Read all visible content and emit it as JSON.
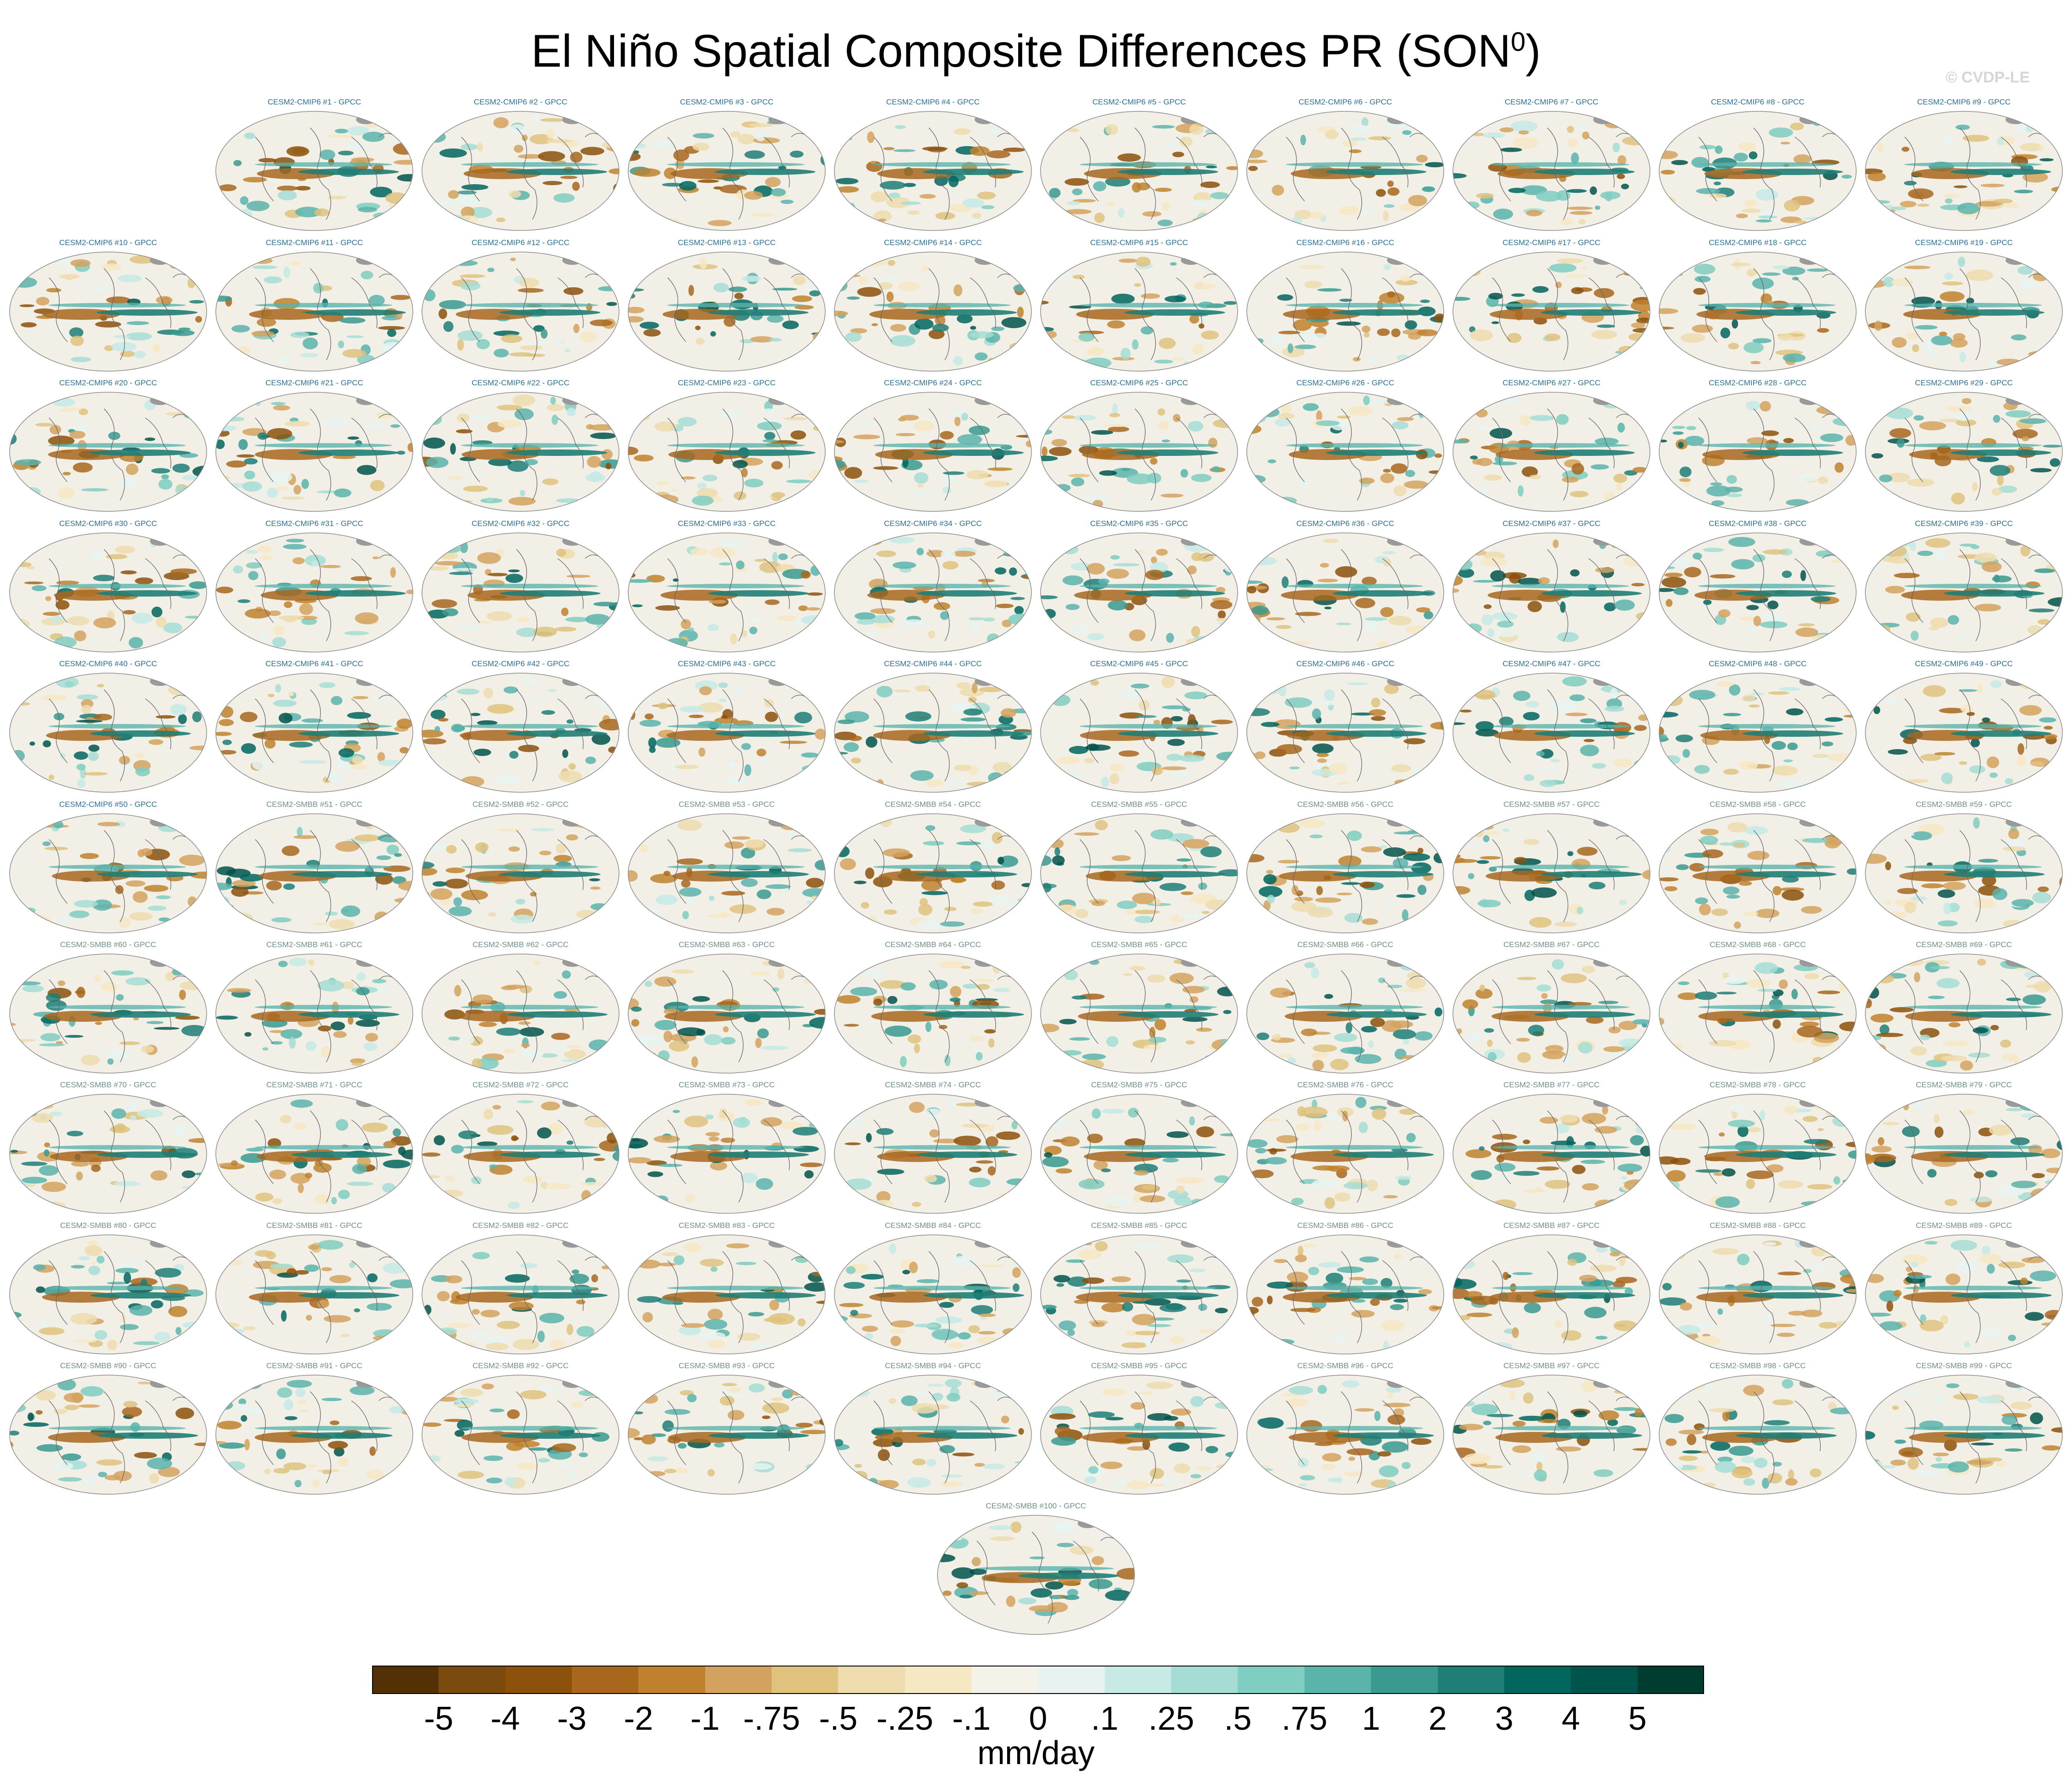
{
  "chart_data": {
    "type": "heatmap",
    "title": "El Niño Spatial Composite Differences PR (SON",
    "title_superscript": "0",
    "title_suffix": ")",
    "watermark": "© CVDP-LE",
    "colorbar": {
      "ticks": [
        "-5",
        "-4",
        "-3",
        "-2",
        "-1",
        "-.75",
        "-.5",
        "-.25",
        "-.1",
        "0",
        ".1",
        ".25",
        ".5",
        ".75",
        "1",
        "2",
        "3",
        "4",
        "5"
      ],
      "units": "mm/day",
      "colors": [
        "#543005",
        "#7a4a0e",
        "#8c510a",
        "#a8671d",
        "#bf812d",
        "#d3a25e",
        "#dfc27d",
        "#eedcae",
        "#f6e8c3",
        "#f5f2ea",
        "#e8f3f1",
        "#c7eae5",
        "#a5ddd4",
        "#80cdc1",
        "#5ab4ac",
        "#3a9a90",
        "#1f7e76",
        "#01665e",
        "#01544b",
        "#003c30"
      ]
    },
    "panels": [
      "CESM2-CMIP6 #1 - GPCC",
      "CESM2-CMIP6 #2 - GPCC",
      "CESM2-CMIP6 #3 - GPCC",
      "CESM2-CMIP6 #4 - GPCC",
      "CESM2-CMIP6 #5 - GPCC",
      "CESM2-CMIP6 #6 - GPCC",
      "CESM2-CMIP6 #7 - GPCC",
      "CESM2-CMIP6 #8 - GPCC",
      "CESM2-CMIP6 #9 - GPCC",
      "CESM2-CMIP6 #10 - GPCC",
      "CESM2-CMIP6 #11 - GPCC",
      "CESM2-CMIP6 #12 - GPCC",
      "CESM2-CMIP6 #13 - GPCC",
      "CESM2-CMIP6 #14 - GPCC",
      "CESM2-CMIP6 #15 - GPCC",
      "CESM2-CMIP6 #16 - GPCC",
      "CESM2-CMIP6 #17 - GPCC",
      "CESM2-CMIP6 #18 - GPCC",
      "CESM2-CMIP6 #19 - GPCC",
      "CESM2-CMIP6 #20 - GPCC",
      "CESM2-CMIP6 #21 - GPCC",
      "CESM2-CMIP6 #22 - GPCC",
      "CESM2-CMIP6 #23 - GPCC",
      "CESM2-CMIP6 #24 - GPCC",
      "CESM2-CMIP6 #25 - GPCC",
      "CESM2-CMIP6 #26 - GPCC",
      "CESM2-CMIP6 #27 - GPCC",
      "CESM2-CMIP6 #28 - GPCC",
      "CESM2-CMIP6 #29 - GPCC",
      "CESM2-CMIP6 #30 - GPCC",
      "CESM2-CMIP6 #31 - GPCC",
      "CESM2-CMIP6 #32 - GPCC",
      "CESM2-CMIP6 #33 - GPCC",
      "CESM2-CMIP6 #34 - GPCC",
      "CESM2-CMIP6 #35 - GPCC",
      "CESM2-CMIP6 #36 - GPCC",
      "CESM2-CMIP6 #37 - GPCC",
      "CESM2-CMIP6 #38 - GPCC",
      "CESM2-CMIP6 #39 - GPCC",
      "CESM2-CMIP6 #40 - GPCC",
      "CESM2-CMIP6 #41 - GPCC",
      "CESM2-CMIP6 #42 - GPCC",
      "CESM2-CMIP6 #43 - GPCC",
      "CESM2-CMIP6 #44 - GPCC",
      "CESM2-CMIP6 #45 - GPCC",
      "CESM2-CMIP6 #46 - GPCC",
      "CESM2-CMIP6 #47 - GPCC",
      "CESM2-CMIP6 #48 - GPCC",
      "CESM2-CMIP6 #49 - GPCC",
      "CESM2-CMIP6 #50 - GPCC",
      "CESM2-SMBB #51 - GPCC",
      "CESM2-SMBB #52 - GPCC",
      "CESM2-SMBB #53 - GPCC",
      "CESM2-SMBB #54 - GPCC",
      "CESM2-SMBB #55 - GPCC",
      "CESM2-SMBB #56 - GPCC",
      "CESM2-SMBB #57 - GPCC",
      "CESM2-SMBB #58 - GPCC",
      "CESM2-SMBB #59 - GPCC",
      "CESM2-SMBB #60 - GPCC",
      "CESM2-SMBB #61 - GPCC",
      "CESM2-SMBB #62 - GPCC",
      "CESM2-SMBB #63 - GPCC",
      "CESM2-SMBB #64 - GPCC",
      "CESM2-SMBB #65 - GPCC",
      "CESM2-SMBB #66 - GPCC",
      "CESM2-SMBB #67 - GPCC",
      "CESM2-SMBB #68 - GPCC",
      "CESM2-SMBB #69 - GPCC",
      "CESM2-SMBB #70 - GPCC",
      "CESM2-SMBB #71 - GPCC",
      "CESM2-SMBB #72 - GPCC",
      "CESM2-SMBB #73 - GPCC",
      "CESM2-SMBB #74 - GPCC",
      "CESM2-SMBB #75 - GPCC",
      "CESM2-SMBB #76 - GPCC",
      "CESM2-SMBB #77 - GPCC",
      "CESM2-SMBB #78 - GPCC",
      "CESM2-SMBB #79 - GPCC",
      "CESM2-SMBB #80 - GPCC",
      "CESM2-SMBB #81 - GPCC",
      "CESM2-SMBB #82 - GPCC",
      "CESM2-SMBB #83 - GPCC",
      "CESM2-SMBB #84 - GPCC",
      "CESM2-SMBB #85 - GPCC",
      "CESM2-SMBB #86 - GPCC",
      "CESM2-SMBB #87 - GPCC",
      "CESM2-SMBB #88 - GPCC",
      "CESM2-SMBB #89 - GPCC",
      "CESM2-SMBB #90 - GPCC",
      "CESM2-SMBB #91 - GPCC",
      "CESM2-SMBB #92 - GPCC",
      "CESM2-SMBB #93 - GPCC",
      "CESM2-SMBB #94 - GPCC",
      "CESM2-SMBB #95 - GPCC",
      "CESM2-SMBB #96 - GPCC",
      "CESM2-SMBB #97 - GPCC",
      "CESM2-SMBB #98 - GPCC",
      "CESM2-SMBB #99 - GPCC",
      "CESM2-SMBB #100 - GPCC"
    ],
    "label_colors": {
      "CESM2-CMIP6": "#2a6f97",
      "CESM2-SMBB": "#6f8f86"
    }
  }
}
